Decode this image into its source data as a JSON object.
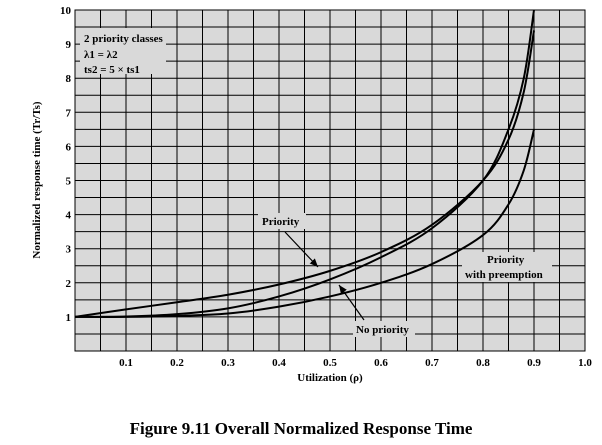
{
  "chart_data": {
    "type": "line",
    "title": "",
    "xlabel": "Utilization (ρ)",
    "ylabel": "Normalized response time (Tr/Ts)",
    "xlim": [
      0,
      1.0
    ],
    "ylim": [
      0,
      10
    ],
    "grid": true,
    "x_ticks": [
      "0.1",
      "0.2",
      "0.3",
      "0.4",
      "0.5",
      "0.6",
      "0.7",
      "0.8",
      "0.9",
      "1.0"
    ],
    "y_ticks": [
      "1",
      "2",
      "3",
      "4",
      "5",
      "6",
      "7",
      "8",
      "9",
      "10"
    ],
    "series": [
      {
        "name": "Priority",
        "x": [
          0,
          0.1,
          0.2,
          0.3,
          0.4,
          0.5,
          0.6,
          0.7,
          0.8,
          0.85,
          0.88,
          0.9
        ],
        "y": [
          1,
          1.22,
          1.43,
          1.65,
          1.95,
          2.35,
          2.9,
          3.7,
          5.0,
          6.2,
          7.6,
          9.4
        ]
      },
      {
        "name": "No priority",
        "x": [
          0,
          0.1,
          0.2,
          0.3,
          0.4,
          0.5,
          0.6,
          0.7,
          0.8,
          0.85,
          0.88,
          0.9
        ],
        "y": [
          1,
          1.01,
          1.08,
          1.25,
          1.6,
          2.1,
          2.75,
          3.6,
          5.0,
          6.5,
          8.0,
          10.0
        ]
      },
      {
        "name": "Priority with preemption",
        "x": [
          0,
          0.1,
          0.2,
          0.3,
          0.4,
          0.5,
          0.6,
          0.7,
          0.8,
          0.85,
          0.88,
          0.9
        ],
        "y": [
          1,
          1.0,
          1.03,
          1.1,
          1.3,
          1.6,
          2.0,
          2.55,
          3.4,
          4.3,
          5.3,
          6.5
        ]
      }
    ],
    "annotations": {
      "box_line1": "2 priority classes",
      "box_line2": "λ1 = λ2",
      "box_line3": "ts2 = 5 × ts1",
      "priority_label": "Priority",
      "no_priority_label": "No priority",
      "preemption_line1": "Priority",
      "preemption_line2": "with preemption"
    },
    "colors": {
      "plot_background": "#d9d9d9",
      "grid": "#000000",
      "line": "#000000"
    }
  },
  "caption": "Figure 9.11 Overall Normalized Response Time"
}
